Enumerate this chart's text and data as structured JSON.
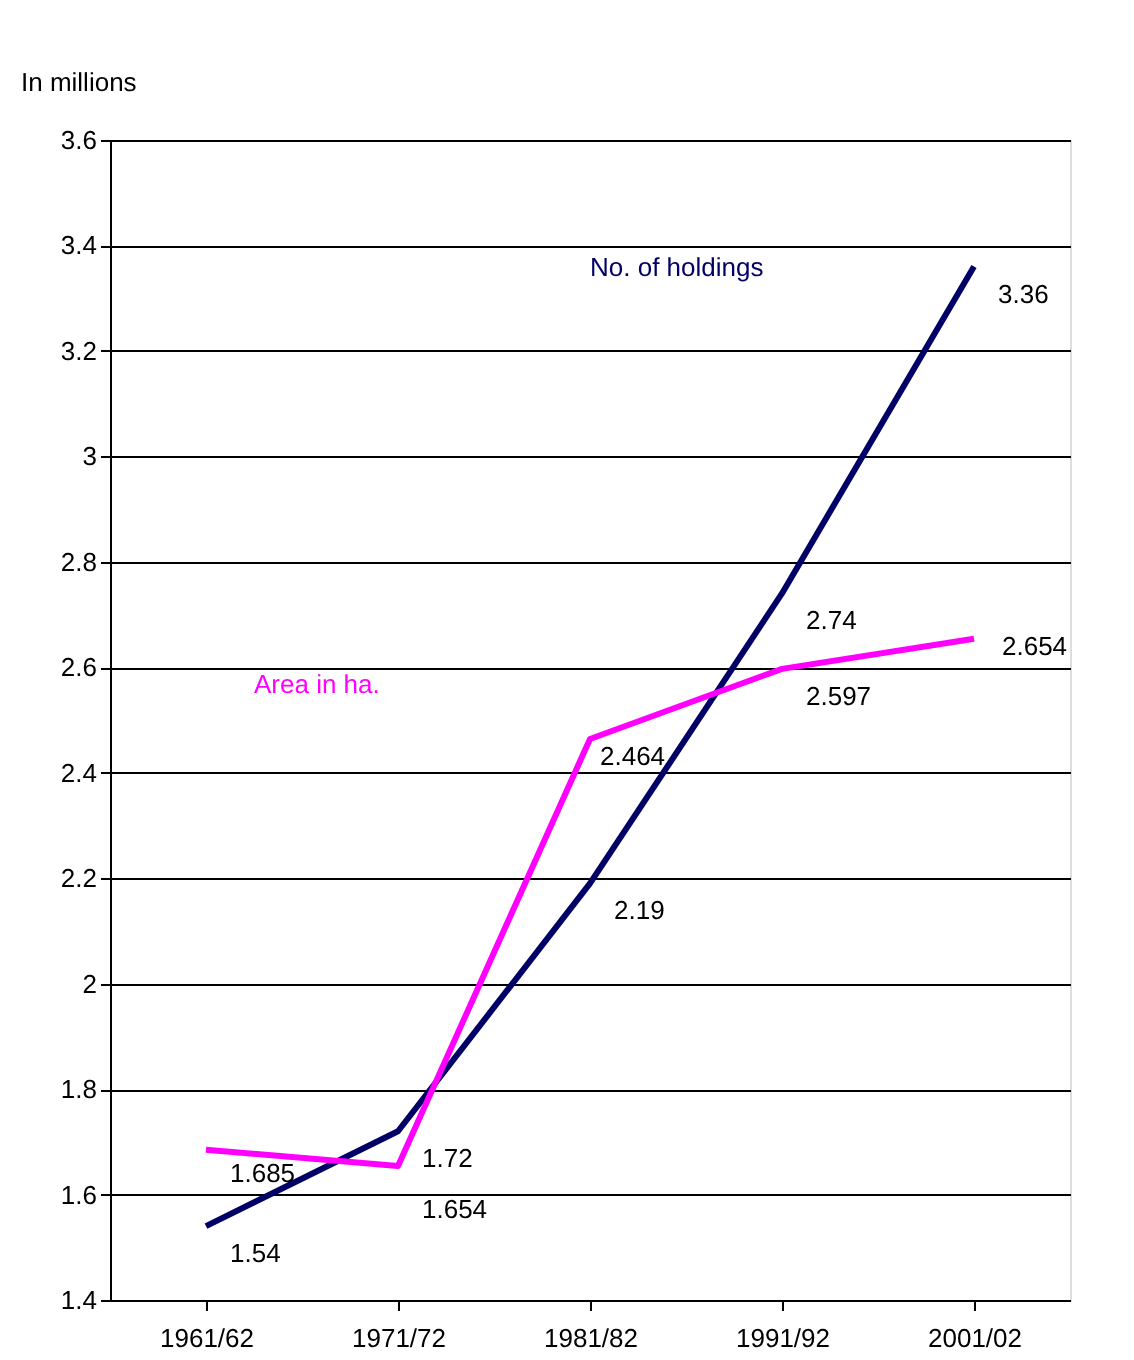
{
  "chart_data": {
    "type": "line",
    "ylabel": "In millions",
    "categories": [
      "1961/62",
      "1971/72",
      "1981/82",
      "1991/92",
      "2001/02"
    ],
    "series": [
      {
        "name": "No. of holdings",
        "color": "#000066",
        "values": [
          1.54,
          1.72,
          2.19,
          2.74,
          3.36
        ]
      },
      {
        "name": "Area in ha.",
        "color": "#ff00ff",
        "values": [
          1.685,
          1.654,
          2.464,
          2.597,
          2.654
        ]
      }
    ],
    "ylim": [
      1.4,
      3.6
    ],
    "yticks": [
      1.4,
      1.6,
      1.8,
      {
        "value": 2,
        "label": "2"
      },
      2.2,
      2.4,
      2.6,
      2.8,
      {
        "value": 3,
        "label": "3"
      },
      3.2,
      3.4,
      3.6
    ],
    "grid": "y",
    "legend": false,
    "data_labels": true,
    "marker": "none",
    "line_style": "solid"
  }
}
